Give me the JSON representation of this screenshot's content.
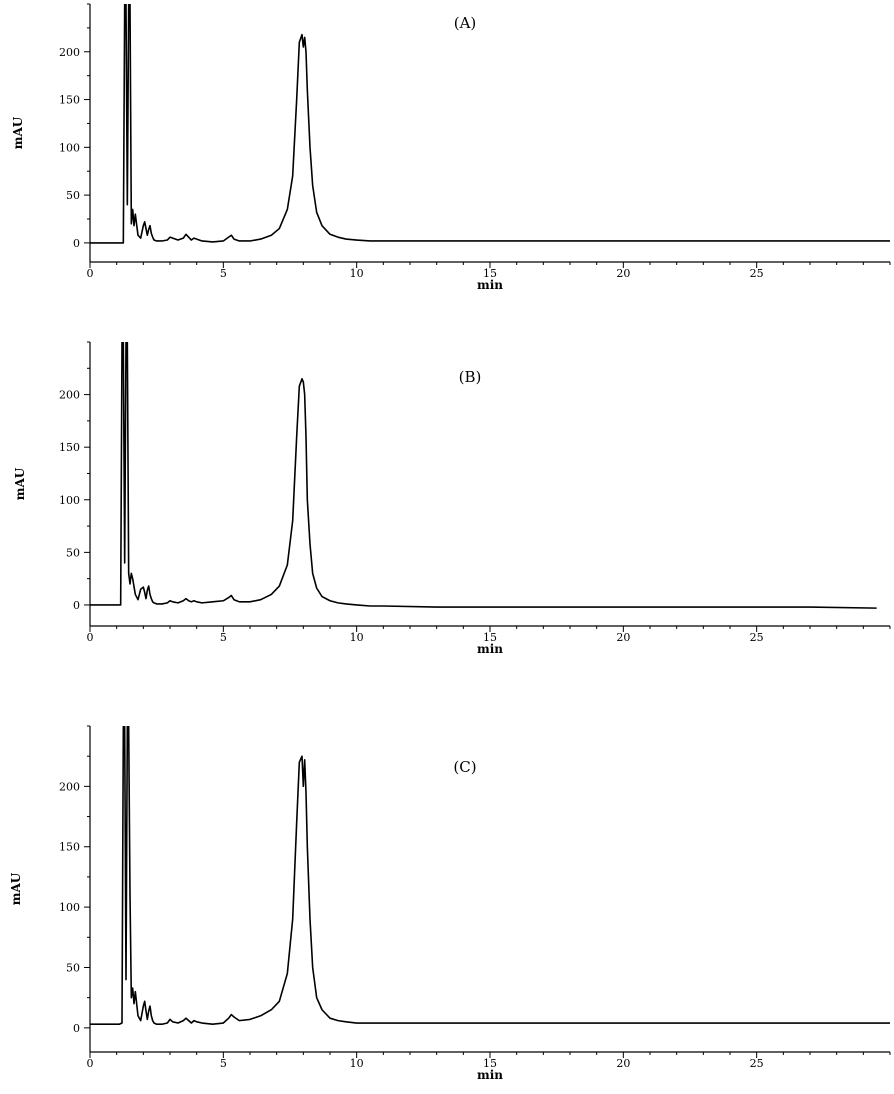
{
  "chart_data": [
    {
      "type": "line",
      "panel_label": "(A)",
      "xlabel": "min",
      "ylabel": "mAU",
      "xlim": [
        0,
        30
      ],
      "ylim": [
        -20,
        250
      ],
      "x_ticks": [
        0,
        5,
        10,
        15,
        20,
        25
      ],
      "x_tick_labels": [
        "0",
        "5",
        "10",
        "15",
        "20",
        "25"
      ],
      "y_ticks": [
        0,
        50,
        100,
        150,
        200
      ],
      "y_tick_labels": [
        "0",
        "50",
        "100",
        "150",
        "200"
      ],
      "grid": false,
      "series": [
        {
          "x": [
            0,
            1.25,
            1.3,
            1.35,
            1.4,
            1.45,
            1.5,
            1.55,
            1.6,
            1.65,
            1.7,
            1.8,
            1.9,
            2.0,
            2.05,
            2.1,
            2.15,
            2.2,
            2.25,
            2.3,
            2.35,
            2.4,
            2.5,
            2.7,
            2.9,
            3.0,
            3.1,
            3.3,
            3.5,
            3.6,
            3.7,
            3.8,
            3.9,
            4.0,
            4.2,
            4.6,
            5.0,
            5.2,
            5.3,
            5.4,
            5.6,
            6.0,
            6.4,
            6.8,
            7.1,
            7.4,
            7.6,
            7.75,
            7.85,
            7.95,
            8.0,
            8.05,
            8.1,
            8.15,
            8.25,
            8.35,
            8.5,
            8.7,
            9.0,
            9.3,
            9.6,
            10.0,
            10.5,
            11,
            13,
            15,
            18,
            20,
            22,
            25,
            27,
            30
          ],
          "y": [
            0,
            0,
            250,
            250,
            40,
            250,
            250,
            20,
            35,
            18,
            30,
            8,
            5,
            18,
            22,
            15,
            8,
            14,
            18,
            10,
            6,
            3,
            2,
            2,
            3,
            6,
            5,
            3,
            5,
            9,
            6,
            3,
            5,
            4,
            2,
            1,
            2,
            6,
            8,
            4,
            2,
            2,
            4,
            8,
            15,
            35,
            70,
            150,
            210,
            218,
            205,
            215,
            200,
            160,
            100,
            60,
            32,
            18,
            9,
            6,
            4,
            3,
            2,
            2,
            2,
            2,
            2,
            2,
            2,
            2,
            2,
            2
          ]
        }
      ]
    },
    {
      "type": "line",
      "panel_label": "(B)",
      "xlabel": "min",
      "ylabel": "mAU",
      "xlim": [
        0,
        30
      ],
      "ylim": [
        -20,
        250
      ],
      "x_ticks": [
        0,
        5,
        10,
        15,
        20,
        25
      ],
      "x_tick_labels": [
        "0",
        "5",
        "10",
        "15",
        "20",
        "25"
      ],
      "y_ticks": [
        0,
        50,
        100,
        150,
        200
      ],
      "y_tick_labels": [
        "0",
        "50",
        "100",
        "150",
        "200"
      ],
      "grid": false,
      "series": [
        {
          "x": [
            0,
            1.15,
            1.2,
            1.25,
            1.3,
            1.35,
            1.4,
            1.45,
            1.5,
            1.55,
            1.6,
            1.7,
            1.8,
            1.9,
            2.0,
            2.05,
            2.1,
            2.15,
            2.2,
            2.25,
            2.3,
            2.35,
            2.4,
            2.5,
            2.7,
            2.9,
            3.0,
            3.1,
            3.3,
            3.5,
            3.6,
            3.7,
            3.8,
            3.9,
            4.0,
            4.2,
            4.6,
            5.0,
            5.2,
            5.3,
            5.4,
            5.6,
            6.0,
            6.4,
            6.8,
            7.1,
            7.4,
            7.6,
            7.75,
            7.85,
            7.95,
            8.0,
            8.05,
            8.1,
            8.15,
            8.25,
            8.35,
            8.5,
            8.7,
            9.0,
            9.3,
            9.6,
            10.0,
            10.5,
            11,
            13,
            15,
            18,
            20,
            22,
            25,
            27,
            29.5
          ],
          "y": [
            0,
            0,
            250,
            250,
            40,
            250,
            250,
            30,
            20,
            30,
            25,
            10,
            5,
            15,
            17,
            12,
            6,
            14,
            18,
            10,
            6,
            3,
            2,
            1,
            1,
            2,
            4,
            3,
            2,
            4,
            6,
            4,
            3,
            4,
            3,
            2,
            3,
            4,
            7,
            9,
            5,
            3,
            3,
            5,
            10,
            18,
            38,
            80,
            160,
            208,
            215,
            212,
            200,
            160,
            100,
            58,
            30,
            16,
            8,
            4,
            2,
            1,
            0,
            -1,
            -1,
            -2,
            -2,
            -2,
            -2,
            -2,
            -2,
            -2,
            -3
          ]
        }
      ]
    },
    {
      "type": "line",
      "panel_label": "(C)",
      "xlabel": "min",
      "ylabel": "mAU",
      "xlim": [
        0,
        30
      ],
      "ylim": [
        -20,
        250
      ],
      "x_ticks": [
        0,
        5,
        10,
        15,
        20,
        25
      ],
      "x_tick_labels": [
        "0",
        "5",
        "10",
        "15",
        "20",
        "25"
      ],
      "y_ticks": [
        0,
        50,
        100,
        150,
        200
      ],
      "y_tick_labels": [
        "0",
        "50",
        "100",
        "150",
        "200"
      ],
      "grid": false,
      "series": [
        {
          "x": [
            0,
            1.1,
            1.2,
            1.25,
            1.3,
            1.35,
            1.4,
            1.45,
            1.5,
            1.55,
            1.6,
            1.65,
            1.7,
            1.8,
            1.9,
            2.0,
            2.05,
            2.1,
            2.15,
            2.2,
            2.25,
            2.3,
            2.35,
            2.4,
            2.5,
            2.7,
            2.9,
            3.0,
            3.1,
            3.3,
            3.5,
            3.6,
            3.7,
            3.8,
            3.9,
            4.0,
            4.2,
            4.6,
            5.0,
            5.2,
            5.3,
            5.4,
            5.6,
            6.0,
            6.4,
            6.8,
            7.1,
            7.4,
            7.6,
            7.75,
            7.85,
            7.95,
            8.0,
            8.05,
            8.1,
            8.15,
            8.25,
            8.35,
            8.5,
            8.7,
            9.0,
            9.3,
            9.6,
            10.0,
            10.5,
            11,
            13,
            15,
            18,
            20,
            22,
            25,
            27,
            30
          ],
          "y": [
            3,
            3,
            4,
            250,
            250,
            40,
            250,
            250,
            110,
            25,
            33,
            20,
            30,
            10,
            6,
            18,
            22,
            14,
            7,
            14,
            18,
            10,
            6,
            4,
            3,
            3,
            4,
            7,
            5,
            4,
            6,
            8,
            6,
            4,
            6,
            5,
            4,
            3,
            4,
            8,
            11,
            9,
            6,
            7,
            10,
            15,
            22,
            45,
            90,
            170,
            220,
            225,
            200,
            222,
            195,
            150,
            90,
            50,
            25,
            15,
            8,
            6,
            5,
            4,
            4,
            4,
            4,
            4,
            4,
            4,
            4,
            4,
            4,
            4
          ]
        }
      ]
    }
  ]
}
